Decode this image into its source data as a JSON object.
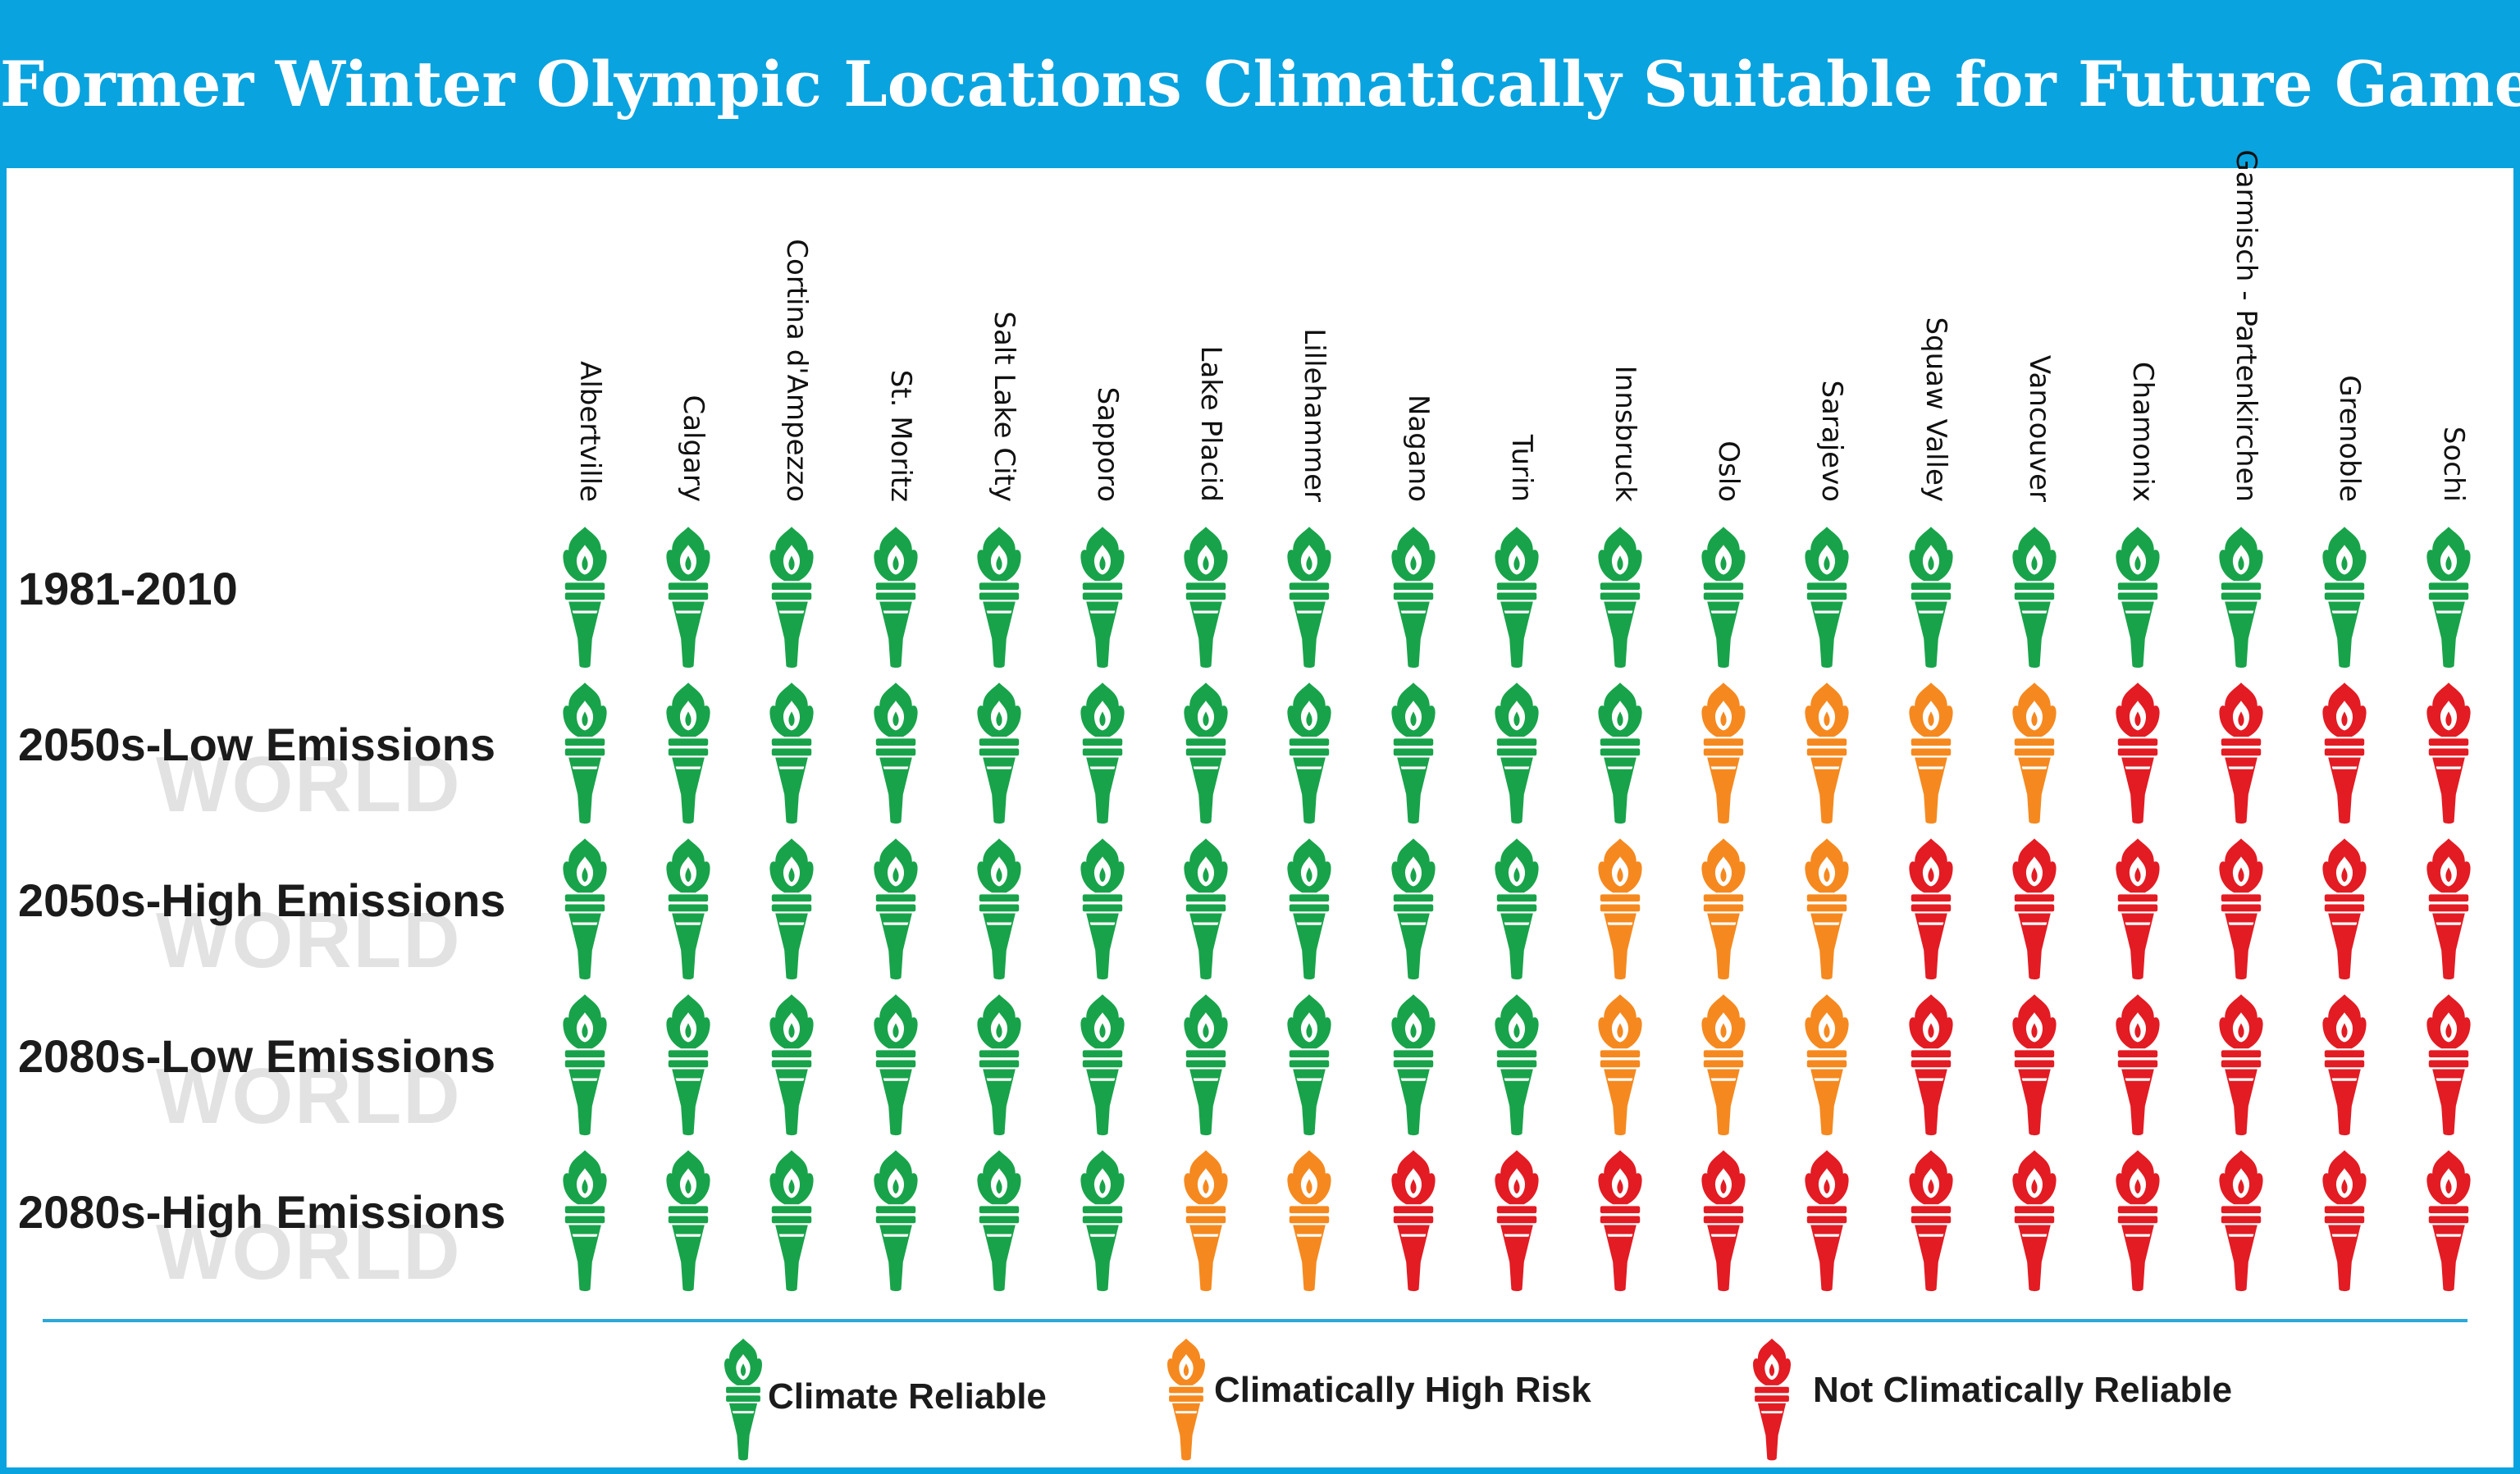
{
  "title": "Former Winter Olympic Locations Climatically Suitable for Future Games",
  "colors": {
    "reliable": "#18a34a",
    "high_risk": "#f5891f",
    "not_reliable": "#e31b23",
    "title_bar": "#09a3df"
  },
  "icon": "torch-icon",
  "watermark_text": "WORLD",
  "chart_data": {
    "type": "table",
    "title": "Former Winter Olympic Locations Climatically Suitable for Future Games",
    "columns": [
      "Albertville",
      "Calgary",
      "Cortina d'Ampezzo",
      "St. Moritz",
      "Salt Lake City",
      "Sapporo",
      "Lake Placid",
      "Lillehammer",
      "Nagano",
      "Turin",
      "Innsbruck",
      "Oslo",
      "Sarajevo",
      "Squaw Valley",
      "Vancouver",
      "Chamonix",
      "Garmisch - Partenkirchen",
      "Grenoble",
      "Sochi"
    ],
    "rows": [
      {
        "label": "1981-2010",
        "values": [
          "reliable",
          "reliable",
          "reliable",
          "reliable",
          "reliable",
          "reliable",
          "reliable",
          "reliable",
          "reliable",
          "reliable",
          "reliable",
          "reliable",
          "reliable",
          "reliable",
          "reliable",
          "reliable",
          "reliable",
          "reliable",
          "reliable"
        ]
      },
      {
        "label": "2050s-Low Emissions",
        "values": [
          "reliable",
          "reliable",
          "reliable",
          "reliable",
          "reliable",
          "reliable",
          "reliable",
          "reliable",
          "reliable",
          "reliable",
          "reliable",
          "high_risk",
          "high_risk",
          "high_risk",
          "high_risk",
          "not_reliable",
          "not_reliable",
          "not_reliable",
          "not_reliable"
        ]
      },
      {
        "label": "2050s-High Emissions",
        "values": [
          "reliable",
          "reliable",
          "reliable",
          "reliable",
          "reliable",
          "reliable",
          "reliable",
          "reliable",
          "reliable",
          "reliable",
          "high_risk",
          "high_risk",
          "high_risk",
          "not_reliable",
          "not_reliable",
          "not_reliable",
          "not_reliable",
          "not_reliable",
          "not_reliable"
        ]
      },
      {
        "label": "2080s-Low Emissions",
        "values": [
          "reliable",
          "reliable",
          "reliable",
          "reliable",
          "reliable",
          "reliable",
          "reliable",
          "reliable",
          "reliable",
          "reliable",
          "high_risk",
          "high_risk",
          "high_risk",
          "not_reliable",
          "not_reliable",
          "not_reliable",
          "not_reliable",
          "not_reliable",
          "not_reliable"
        ]
      },
      {
        "label": "2080s-High Emissions",
        "values": [
          "reliable",
          "reliable",
          "reliable",
          "reliable",
          "reliable",
          "reliable",
          "high_risk",
          "high_risk",
          "not_reliable",
          "not_reliable",
          "not_reliable",
          "not_reliable",
          "not_reliable",
          "not_reliable",
          "not_reliable",
          "not_reliable",
          "not_reliable",
          "not_reliable",
          "not_reliable"
        ]
      }
    ],
    "legend": [
      {
        "key": "reliable",
        "label": "Climate Reliable"
      },
      {
        "key": "high_risk",
        "label": "Climatically High Risk"
      },
      {
        "key": "not_reliable",
        "label": "Not Climatically Reliable"
      }
    ],
    "legend_position": "bottom"
  }
}
